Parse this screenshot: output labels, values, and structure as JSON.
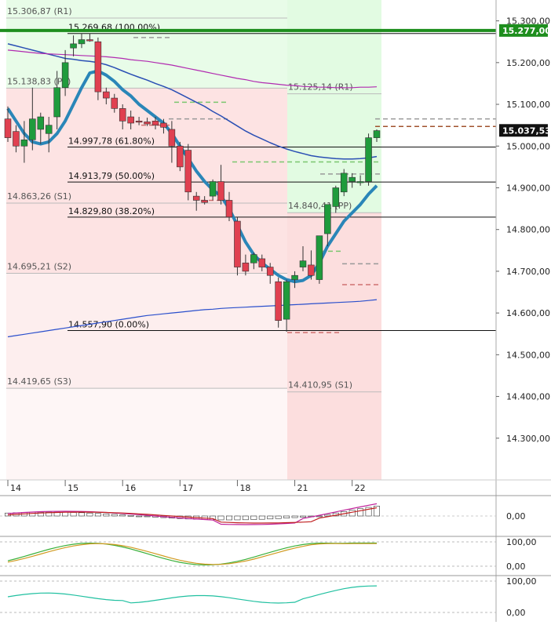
{
  "chart_data": {
    "type": "candlestick",
    "title": "",
    "xlabel": "",
    "ylabel": "",
    "ylim": [
      14200,
      15350
    ],
    "x_tick_labels": [
      "14",
      "15",
      "16",
      "17",
      "18",
      "21",
      "22"
    ],
    "y_tick_labels": [
      "15.300,00",
      "15.200,00",
      "15.100,00",
      "15.000,00",
      "14.900,00",
      "14.800,00",
      "14.700,00",
      "14.600,00",
      "14.500,00",
      "14.400,00",
      "14.300,00"
    ],
    "y_ticks": [
      15300,
      15200,
      15100,
      15000,
      14900,
      14800,
      14700,
      14600,
      14500,
      14400,
      14300
    ],
    "current_price": {
      "value": 15037.53,
      "label": "15.037,53"
    },
    "resistance_line": {
      "value": 15277.0,
      "label": "15.277,00",
      "color": "#1e8e1e"
    },
    "pivot_levels": [
      {
        "label": "15.306,87 (R1)",
        "value": 15306.87,
        "period": "previous"
      },
      {
        "label": "15.138,83 (PP)",
        "value": 15138.83,
        "period": "previous"
      },
      {
        "label": "14.863,26 (S1)",
        "value": 14863.26,
        "period": "previous"
      },
      {
        "label": "14.695,21 (S2)",
        "value": 14695.21,
        "period": "previous"
      },
      {
        "label": "14.419,65 (S3)",
        "value": 14419.65,
        "period": "previous"
      },
      {
        "label": "15.125,14 (R1)",
        "value": 15125.14,
        "period": "current"
      },
      {
        "label": "14.840,41 (PP)",
        "value": 14840.41,
        "period": "current"
      },
      {
        "label": "14.410,95 (S1)",
        "value": 14410.95,
        "period": "current"
      }
    ],
    "fibonacci_levels": [
      {
        "label": "15.269,68 (100.00%)",
        "value": 15269.68
      },
      {
        "label": "14.997,78 (61.80%)",
        "value": 14997.78
      },
      {
        "label": "14.913,79 (50.00%)",
        "value": 14913.79
      },
      {
        "label": "14.829,80 (38.20%)",
        "value": 14829.8
      },
      {
        "label": "14.557,90 (0.00%)",
        "value": 14557.9
      }
    ],
    "candles": [
      {
        "o": 15065,
        "h": 15095,
        "l": 15010,
        "c": 15020
      },
      {
        "o": 15035,
        "h": 15050,
        "l": 14985,
        "c": 15000
      },
      {
        "o": 15000,
        "h": 15060,
        "l": 14960,
        "c": 15015
      },
      {
        "o": 15015,
        "h": 15140,
        "l": 14990,
        "c": 15065
      },
      {
        "o": 15040,
        "h": 15080,
        "l": 15005,
        "c": 15070
      },
      {
        "o": 15030,
        "h": 15070,
        "l": 14985,
        "c": 15050
      },
      {
        "o": 15070,
        "h": 15180,
        "l": 15040,
        "c": 15140
      },
      {
        "o": 15140,
        "h": 15230,
        "l": 15120,
        "c": 15200
      },
      {
        "o": 15235,
        "h": 15265,
        "l": 15215,
        "c": 15245
      },
      {
        "o": 15245,
        "h": 15270,
        "l": 15235,
        "c": 15255
      },
      {
        "o": 15255,
        "h": 15270,
        "l": 15250,
        "c": 15252
      },
      {
        "o": 15250,
        "h": 15260,
        "l": 15110,
        "c": 15130
      },
      {
        "o": 15130,
        "h": 15140,
        "l": 15100,
        "c": 15115
      },
      {
        "o": 15115,
        "h": 15125,
        "l": 15080,
        "c": 15090
      },
      {
        "o": 15090,
        "h": 15100,
        "l": 15040,
        "c": 15060
      },
      {
        "o": 15070,
        "h": 15085,
        "l": 15040,
        "c": 15055
      },
      {
        "o": 15060,
        "h": 15070,
        "l": 15050,
        "c": 15058
      },
      {
        "o": 15058,
        "h": 15068,
        "l": 15048,
        "c": 15053
      },
      {
        "o": 15060,
        "h": 15070,
        "l": 15040,
        "c": 15050
      },
      {
        "o": 15055,
        "h": 15065,
        "l": 15030,
        "c": 15045
      },
      {
        "o": 15040,
        "h": 15060,
        "l": 14960,
        "c": 15000
      },
      {
        "o": 15000,
        "h": 15010,
        "l": 14940,
        "c": 14950
      },
      {
        "o": 14990,
        "h": 15005,
        "l": 14870,
        "c": 14890
      },
      {
        "o": 14880,
        "h": 14890,
        "l": 14845,
        "c": 14870
      },
      {
        "o": 14870,
        "h": 14880,
        "l": 14860,
        "c": 14865
      },
      {
        "o": 14880,
        "h": 14920,
        "l": 14870,
        "c": 14915
      },
      {
        "o": 14915,
        "h": 14955,
        "l": 14860,
        "c": 14870
      },
      {
        "o": 14870,
        "h": 14890,
        "l": 14820,
        "c": 14830
      },
      {
        "o": 14820,
        "h": 14830,
        "l": 14690,
        "c": 14710
      },
      {
        "o": 14720,
        "h": 14740,
        "l": 14690,
        "c": 14700
      },
      {
        "o": 14720,
        "h": 14745,
        "l": 14705,
        "c": 14740
      },
      {
        "o": 14730,
        "h": 14740,
        "l": 14700,
        "c": 14710
      },
      {
        "o": 14710,
        "h": 14720,
        "l": 14670,
        "c": 14690
      },
      {
        "o": 14675,
        "h": 14685,
        "l": 14565,
        "c": 14582
      },
      {
        "o": 14585,
        "h": 14680,
        "l": 14555,
        "c": 14675
      },
      {
        "o": 14680,
        "h": 14700,
        "l": 14660,
        "c": 14690
      },
      {
        "o": 14710,
        "h": 14760,
        "l": 14700,
        "c": 14725
      },
      {
        "o": 14715,
        "h": 14750,
        "l": 14680,
        "c": 14690
      },
      {
        "o": 14680,
        "h": 14780,
        "l": 14670,
        "c": 14785
      },
      {
        "o": 14790,
        "h": 14860,
        "l": 14760,
        "c": 14860
      },
      {
        "o": 14855,
        "h": 14905,
        "l": 14840,
        "c": 14900
      },
      {
        "o": 14890,
        "h": 14945,
        "l": 14880,
        "c": 14935
      },
      {
        "o": 14915,
        "h": 14935,
        "l": 14900,
        "c": 14925
      },
      {
        "o": 14915,
        "h": 14930,
        "l": 14905,
        "c": 14915
      },
      {
        "o": 14915,
        "h": 15030,
        "l": 14905,
        "c": 15020
      },
      {
        "o": 15020,
        "h": 15040,
        "l": 15010,
        "c": 15037
      }
    ],
    "series": [
      {
        "values": [
          15090,
          15060,
          15030,
          15010,
          15005,
          15010,
          15030,
          15060,
          15100,
          15140,
          15175,
          15180,
          15170,
          15155,
          15135,
          15120,
          15100,
          15085,
          15070,
          15055,
          15030,
          15000,
          14970,
          14940,
          14915,
          14895,
          14880,
          14850,
          14810,
          14770,
          14740,
          14720,
          14705,
          14690,
          14680,
          14675,
          14678,
          14690,
          14720,
          14760,
          14790,
          14820,
          14840,
          14860,
          14885,
          14905
        ]
      },
      {
        "values": [
          15245,
          15240,
          15235,
          15230,
          15225,
          15220,
          15215,
          15210,
          15208,
          15205,
          15203,
          15200,
          15195,
          15188,
          15180,
          15172,
          15165,
          15158,
          15150,
          15143,
          15135,
          15125,
          15115,
          15105,
          15095,
          15083,
          15072,
          15060,
          15048,
          15036,
          15026,
          15017,
          15008,
          15000,
          14993,
          14987,
          14982,
          14977,
          14974,
          14972,
          14970,
          14969,
          14969,
          14970,
          14972,
          14975
        ]
      },
      {
        "values": [
          15230,
          15228,
          15226,
          15224,
          15222,
          15221,
          15220,
          15219,
          15218,
          15217,
          15216,
          15215,
          15214,
          15212,
          15210,
          15207,
          15205,
          15203,
          15200,
          15197,
          15194,
          15190,
          15186,
          15182,
          15178,
          15174,
          15170,
          15166,
          15162,
          15159,
          15155,
          15152,
          15150,
          15148,
          15146,
          15145,
          15143,
          15142,
          15141,
          15141,
          15140,
          15140,
          15140,
          15141,
          15141,
          15142
        ]
      },
      {
        "values": [
          14543,
          14546,
          14549,
          14552,
          14555,
          14558,
          14561,
          14564,
          14567,
          14570,
          14573,
          14576,
          14579,
          14582,
          14585,
          14588,
          14591,
          14594,
          14596,
          14598,
          14600,
          14602,
          14604,
          14606,
          14608,
          14609,
          14611,
          14612,
          14613,
          14614,
          14615,
          14616,
          14617,
          14618,
          14619,
          14620,
          14621,
          14622,
          14623,
          14624,
          14625,
          14626,
          14627,
          14628,
          14630,
          14632
        ]
      }
    ],
    "sub_panels": [
      {
        "y_tick_labels": [
          "0,00"
        ]
      },
      {
        "y_tick_labels": [
          "100,00",
          "0,00"
        ]
      },
      {
        "y_tick_labels": [
          "100,00",
          "0,00"
        ]
      }
    ],
    "colors": {
      "up": "#1f9b3c",
      "down": "#e04050",
      "ma_fast": "#2a86b8",
      "ma_mid": "#2a4fb4",
      "ma_slow": "#b12ab0",
      "ma_long": "#2a4fcc",
      "resistance": "#1e8e1e"
    }
  }
}
